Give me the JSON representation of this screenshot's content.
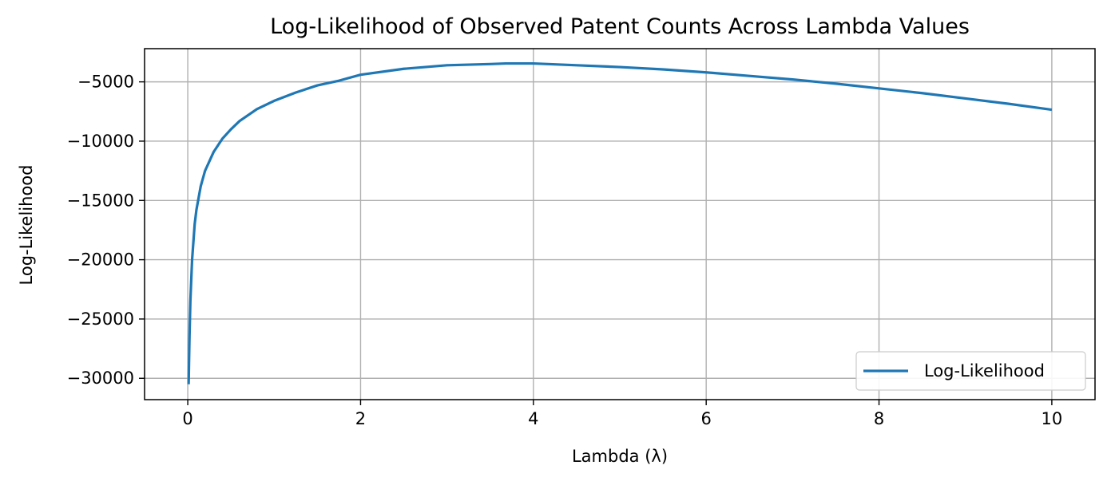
{
  "chart_data": {
    "type": "line",
    "title": "Log-Likelihood of Observed Patent Counts Across Lambda Values",
    "xlabel": "Lambda (λ)",
    "ylabel": "Log-Likelihood",
    "xlim": [
      -0.5,
      10.5
    ],
    "ylim": [
      -31800,
      -2200
    ],
    "x_ticks": [
      0,
      2,
      4,
      6,
      8,
      10
    ],
    "x_tick_labels": [
      "0",
      "2",
      "4",
      "6",
      "8",
      "10"
    ],
    "y_ticks": [
      -30000,
      -25000,
      -20000,
      -15000,
      -10000,
      -5000
    ],
    "y_tick_labels": [
      "−30000",
      "−25000",
      "−20000",
      "−15000",
      "−10000",
      "−5000"
    ],
    "grid": true,
    "legend_position": "lower-right",
    "colors": {
      "series": "#1f77b4",
      "grid": "#b0b0b0",
      "axes": "#000000"
    },
    "series": [
      {
        "name": "Log-Likelihood",
        "x": [
          0.01,
          0.015,
          0.02,
          0.03,
          0.05,
          0.08,
          0.1,
          0.15,
          0.2,
          0.3,
          0.4,
          0.5,
          0.6,
          0.8,
          1.0,
          1.25,
          1.5,
          1.75,
          2.0,
          2.5,
          3.0,
          3.5,
          3.68,
          4.0,
          4.5,
          5.0,
          5.5,
          6.0,
          6.5,
          7.0,
          7.5,
          8.0,
          8.5,
          9.0,
          9.5,
          10.0
        ],
        "y": [
          -30500,
          -28500,
          -26500,
          -23500,
          -20000,
          -17000,
          -15800,
          -13800,
          -12500,
          -10900,
          -9800,
          -9000,
          -8300,
          -7300,
          -6600,
          -5900,
          -5300,
          -4900,
          -4400,
          -3900,
          -3600,
          -3500,
          -3450,
          -3450,
          -3600,
          -3750,
          -3950,
          -4200,
          -4500,
          -4800,
          -5150,
          -5550,
          -5950,
          -6400,
          -6850,
          -7350
        ]
      }
    ]
  }
}
